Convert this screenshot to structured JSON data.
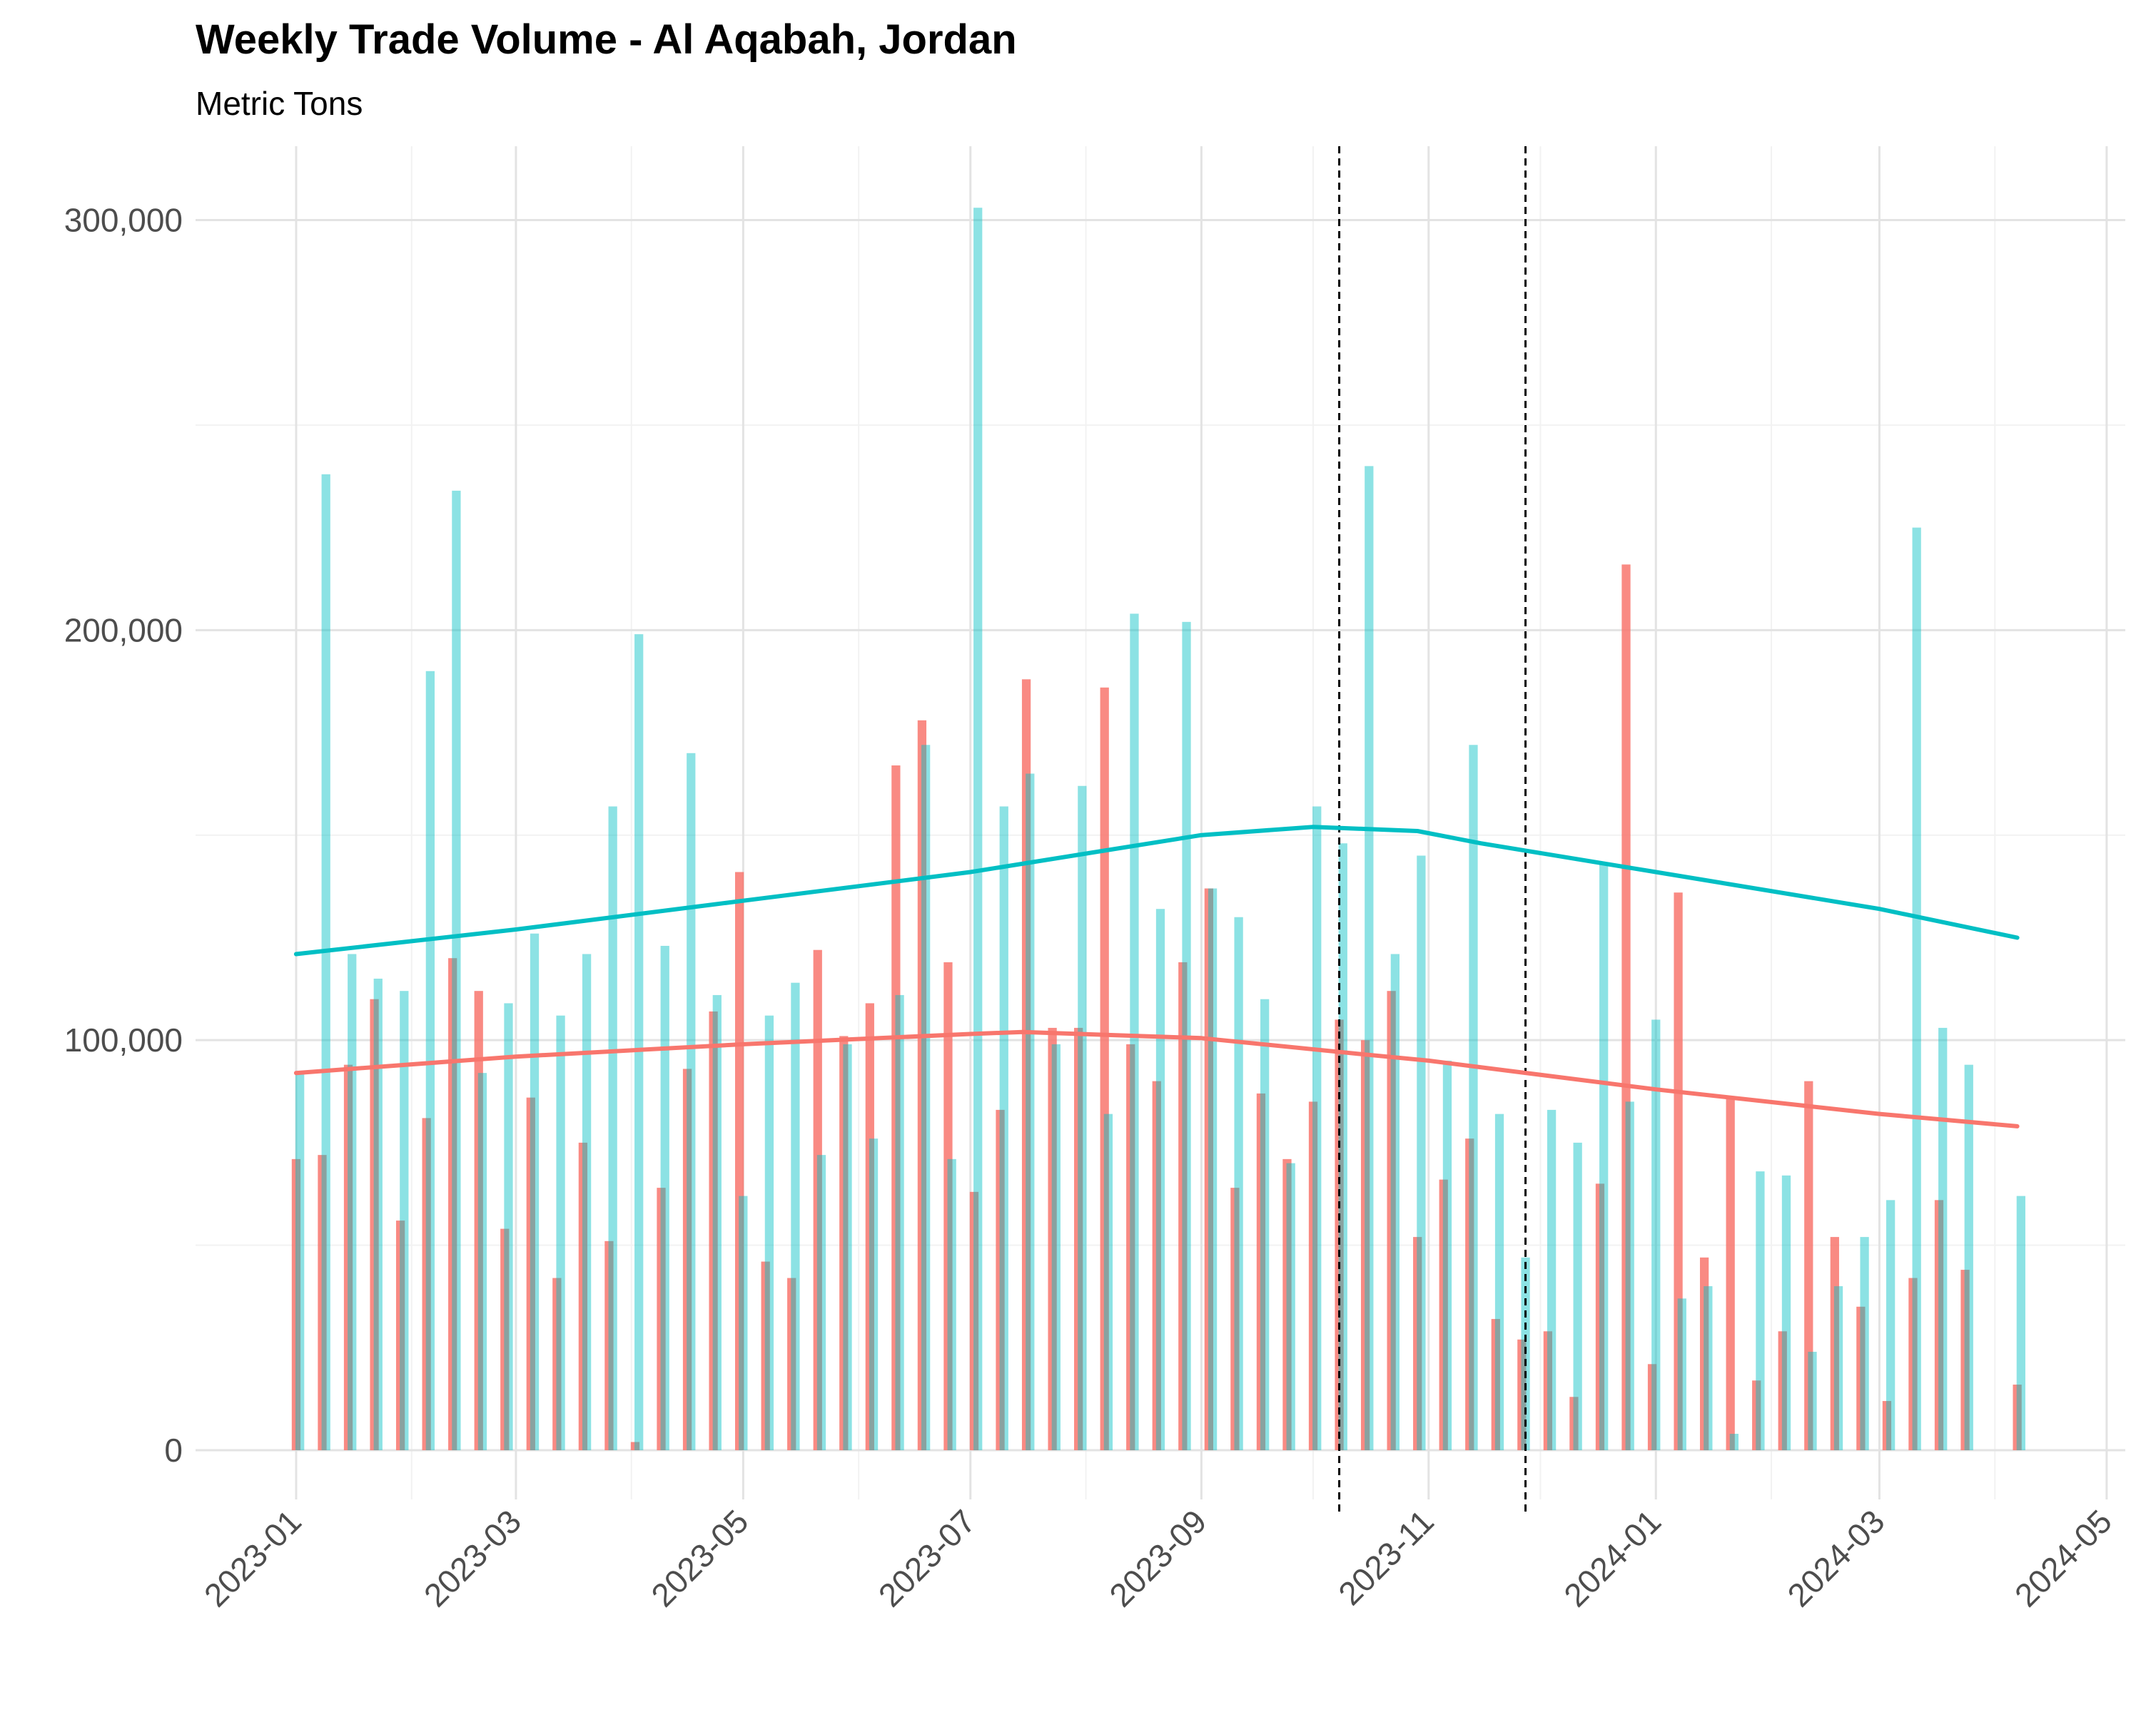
{
  "chart_data": {
    "type": "bar",
    "title": "Weekly Trade Volume - Al Aqabah, Jordan",
    "subtitle": "Metric Tons",
    "xlabel": "",
    "ylabel": "",
    "x_axis": {
      "type": "date",
      "range": [
        "2022-12-05",
        "2024-05-06"
      ],
      "ticks": [
        "2023-01",
        "2023-03",
        "2023-05",
        "2023-07",
        "2023-09",
        "2023-11",
        "2024-01",
        "2024-03",
        "2024-05"
      ]
    },
    "y_axis": {
      "range": [
        -12000,
        318000
      ],
      "ticks": [
        0,
        100000,
        200000,
        300000
      ],
      "tick_labels": [
        "0",
        "100,000",
        "200,000",
        "300,000"
      ]
    },
    "grid": true,
    "legend": "none",
    "colors": {
      "red": "#F8766D",
      "teal": "#00BFC4"
    },
    "series": [
      {
        "color": "#F8766D",
        "bar_opacity": 0.85,
        "x": [
          "2023-01-01",
          "2023-01-08",
          "2023-01-15",
          "2023-01-22",
          "2023-01-29",
          "2023-02-05",
          "2023-02-12",
          "2023-02-19",
          "2023-02-26",
          "2023-03-05",
          "2023-03-12",
          "2023-03-19",
          "2023-03-26",
          "2023-04-02",
          "2023-04-09",
          "2023-04-16",
          "2023-04-23",
          "2023-04-30",
          "2023-05-07",
          "2023-05-14",
          "2023-05-21",
          "2023-05-28",
          "2023-06-04",
          "2023-06-11",
          "2023-06-18",
          "2023-06-25",
          "2023-07-02",
          "2023-07-09",
          "2023-07-16",
          "2023-07-23",
          "2023-07-30",
          "2023-08-06",
          "2023-08-13",
          "2023-08-20",
          "2023-08-27",
          "2023-09-03",
          "2023-09-10",
          "2023-09-17",
          "2023-09-24",
          "2023-10-01",
          "2023-10-08",
          "2023-10-15",
          "2023-10-22",
          "2023-10-29",
          "2023-11-05",
          "2023-11-12",
          "2023-11-19",
          "2023-11-26",
          "2023-12-03",
          "2023-12-10",
          "2023-12-17",
          "2023-12-24",
          "2023-12-31",
          "2024-01-07",
          "2024-01-14",
          "2024-01-21",
          "2024-01-28",
          "2024-02-04",
          "2024-02-11",
          "2024-02-18",
          "2024-02-25",
          "2024-03-03",
          "2024-03-10",
          "2024-03-17",
          "2024-03-24",
          "2024-03-31",
          "2024-04-07"
        ],
        "values": [
          71000,
          72000,
          94000,
          110000,
          56000,
          81000,
          120000,
          112000,
          54000,
          86000,
          42000,
          75000,
          51000,
          2000,
          64000,
          93000,
          107000,
          141000,
          46000,
          42000,
          122000,
          101000,
          109000,
          167000,
          178000,
          119000,
          63000,
          83000,
          188000,
          103000,
          103000,
          186000,
          99000,
          90000,
          119000,
          137000,
          64000,
          87000,
          71000,
          85000,
          105000,
          100000,
          112000,
          52000,
          66000,
          76000,
          32000,
          27000,
          29000,
          13000,
          65000,
          216000,
          21000,
          136000,
          47000,
          86000,
          17000,
          29000,
          90000,
          52000,
          35000,
          12000,
          42000,
          61000,
          44000,
          0,
          16000
        ],
        "trend_x": [
          "2023-01-01",
          "2023-03-01",
          "2023-05-01",
          "2023-07-01",
          "2023-07-15",
          "2023-09-01",
          "2023-10-15",
          "2023-11-01",
          "2024-01-01",
          "2024-03-01",
          "2024-04-07"
        ],
        "trend": [
          92000,
          96000,
          99000,
          101500,
          102000,
          100500,
          96500,
          95000,
          88000,
          82000,
          79000
        ]
      },
      {
        "color": "#00BFC4",
        "bar_opacity": 0.45,
        "x": [
          "2023-01-02",
          "2023-01-09",
          "2023-01-16",
          "2023-01-23",
          "2023-01-30",
          "2023-02-06",
          "2023-02-13",
          "2023-02-20",
          "2023-02-27",
          "2023-03-06",
          "2023-03-13",
          "2023-03-20",
          "2023-03-27",
          "2023-04-03",
          "2023-04-10",
          "2023-04-17",
          "2023-04-24",
          "2023-05-01",
          "2023-05-08",
          "2023-05-15",
          "2023-05-22",
          "2023-05-29",
          "2023-06-05",
          "2023-06-12",
          "2023-06-19",
          "2023-06-26",
          "2023-07-03",
          "2023-07-10",
          "2023-07-17",
          "2023-07-24",
          "2023-07-31",
          "2023-08-07",
          "2023-08-14",
          "2023-08-21",
          "2023-08-28",
          "2023-09-04",
          "2023-09-11",
          "2023-09-18",
          "2023-09-25",
          "2023-10-02",
          "2023-10-09",
          "2023-10-16",
          "2023-10-23",
          "2023-10-30",
          "2023-11-06",
          "2023-11-13",
          "2023-11-20",
          "2023-11-27",
          "2023-12-04",
          "2023-12-11",
          "2023-12-18",
          "2023-12-25",
          "2024-01-01",
          "2024-01-08",
          "2024-01-15",
          "2024-01-22",
          "2024-01-29",
          "2024-02-05",
          "2024-02-12",
          "2024-02-19",
          "2024-02-26",
          "2024-03-04",
          "2024-03-11",
          "2024-03-18",
          "2024-03-25",
          "2024-04-01",
          "2024-04-08"
        ],
        "values": [
          92000,
          238000,
          121000,
          115000,
          112000,
          190000,
          234000,
          92000,
          109000,
          126000,
          106000,
          121000,
          157000,
          199000,
          123000,
          170000,
          111000,
          62000,
          106000,
          114000,
          72000,
          99000,
          76000,
          111000,
          172000,
          71000,
          303000,
          157000,
          165000,
          99000,
          162000,
          82000,
          204000,
          132000,
          202000,
          137000,
          130000,
          110000,
          70000,
          157000,
          148000,
          240000,
          121000,
          145000,
          95000,
          172000,
          82000,
          47000,
          83000,
          75000,
          143000,
          85000,
          105000,
          37000,
          40000,
          4000,
          68000,
          67000,
          24000,
          40000,
          52000,
          61000,
          225000,
          103000,
          94000,
          0,
          62000
        ],
        "trend_x": [
          "2023-01-01",
          "2023-03-01",
          "2023-05-01",
          "2023-07-01",
          "2023-09-01",
          "2023-10-01",
          "2023-10-29",
          "2023-11-15",
          "2024-01-01",
          "2024-03-01",
          "2024-04-07"
        ],
        "trend": [
          121000,
          127000,
          134000,
          141000,
          150000,
          152000,
          151000,
          148000,
          141000,
          132000,
          125000
        ]
      }
    ],
    "reference_lines_x": [
      "2023-10-08",
      "2023-11-27"
    ]
  }
}
